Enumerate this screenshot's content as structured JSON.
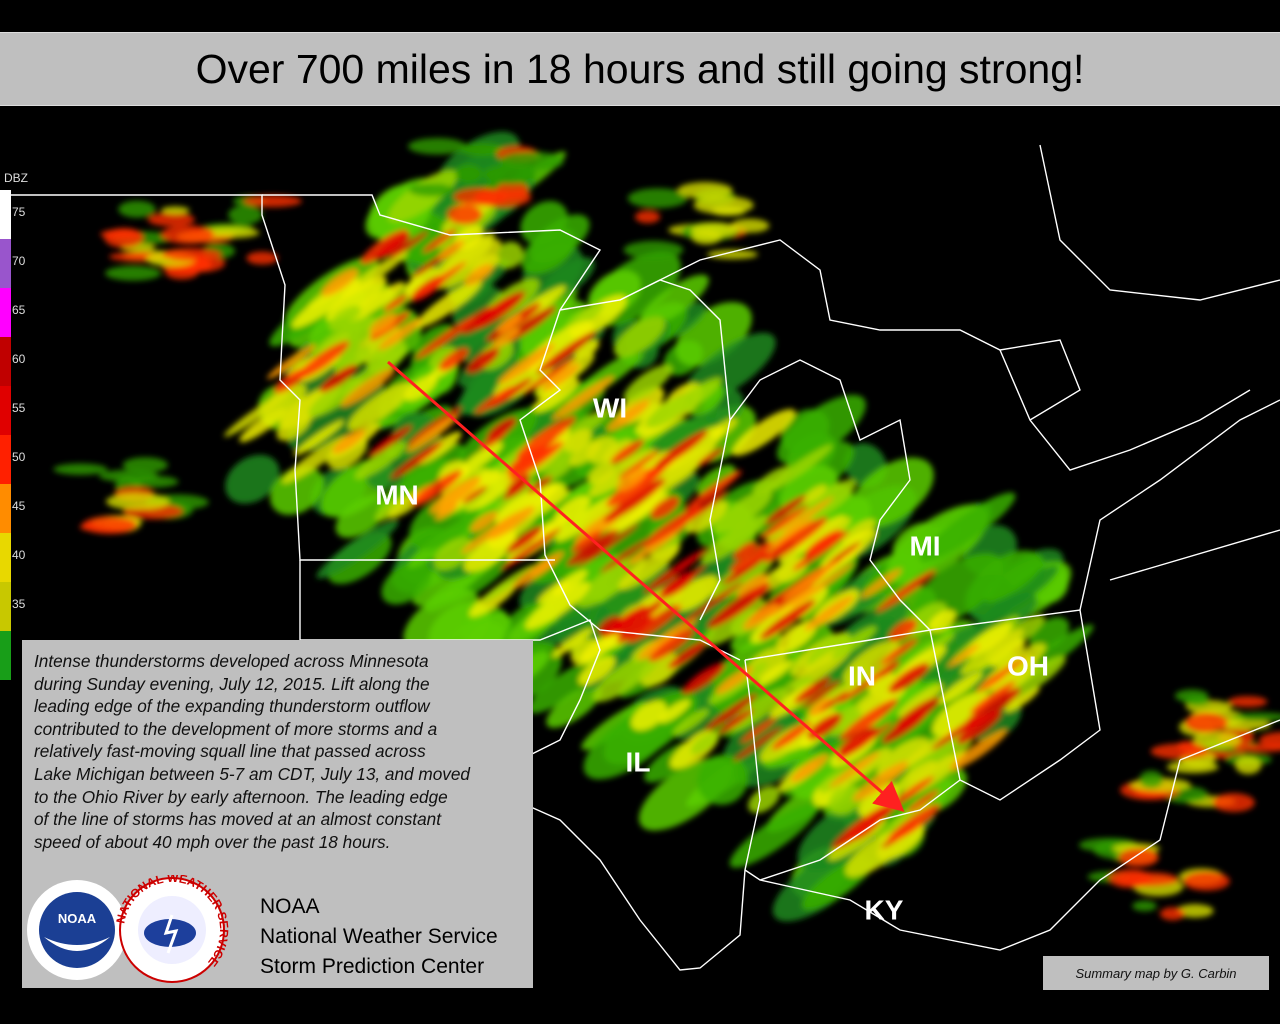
{
  "header": {
    "title": "Over 700 miles in 18 hours and still going strong!"
  },
  "legend": {
    "title": "DBZ",
    "levels": [
      75,
      70,
      65,
      60,
      55,
      50,
      45,
      40,
      35
    ]
  },
  "states": [
    "MN",
    "WI",
    "MI",
    "IN",
    "OH",
    "IL",
    "KY"
  ],
  "caption": {
    "lines": [
      "Intense thunderstorms developed across Minnesota",
      "during Sunday evening, July 12, 2015. Lift along the",
      "leading edge of the expanding thunderstorm outflow",
      "contributed to the development of more storms and a",
      "relatively fast-moving squall line that passed across",
      "Lake Michigan between 5-7 am CDT, July 13, and moved",
      "to the Ohio River by early afternoon. The leading edge",
      "of the line of storms has moved at an almost constant",
      "speed of about 40 mph over the past 18 hours."
    ],
    "logos": {
      "noaa": "NOAA",
      "nws": "NATIONAL WEATHER SERVICE"
    },
    "agency": [
      "NOAA",
      "National Weather Service",
      "Storm Prediction Center"
    ]
  },
  "credit": "Summary map by G. Carbin"
}
